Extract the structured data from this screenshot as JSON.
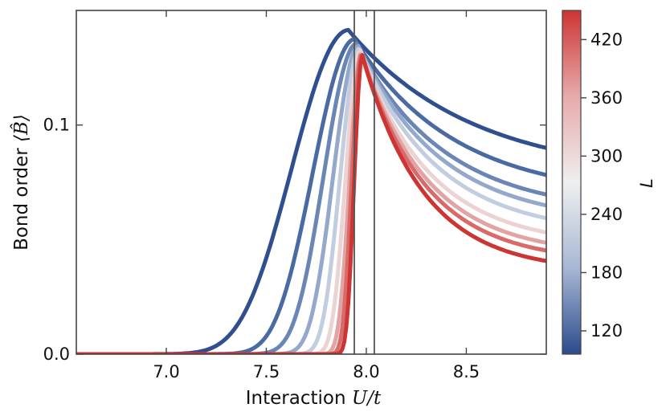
{
  "chart_data": {
    "type": "line",
    "title": "",
    "xlabel_text": "Interaction",
    "xlabel_math": "U/t",
    "ylabel_text": "Bond order",
    "ylabel_math": "⟨B̂⟩",
    "xlim": [
      6.55,
      8.9
    ],
    "ylim": [
      0.0,
      0.15
    ],
    "x_ticks": [
      {
        "value": 7.0,
        "label": "7.0"
      },
      {
        "value": 7.5,
        "label": "7.5"
      },
      {
        "value": 8.0,
        "label": "8.0"
      },
      {
        "value": 8.5,
        "label": "8.5"
      }
    ],
    "y_ticks": [
      {
        "value": 0.0,
        "label": "0.0"
      },
      {
        "value": 0.1,
        "label": "0.1"
      }
    ],
    "vertical_lines": [
      7.94,
      8.04
    ],
    "colorbar": {
      "label": "L",
      "range": [
        96,
        450
      ],
      "ticks": [
        {
          "value": 120,
          "label": "120"
        },
        {
          "value": 180,
          "label": "180"
        },
        {
          "value": 240,
          "label": "240"
        },
        {
          "value": 300,
          "label": "300"
        },
        {
          "value": 360,
          "label": "360"
        },
        {
          "value": 420,
          "label": "420"
        }
      ],
      "colors": [
        "#2b4b8d",
        "#a7b7d4",
        "#efefef",
        "#e8aaaa",
        "#cc3534"
      ]
    },
    "series": [
      {
        "L": 100,
        "color": "#2f4f8e",
        "peak_x": 7.91,
        "peak_y": 0.1415,
        "width_left": 0.38,
        "width_right": 1.05,
        "tail": 0.077
      },
      {
        "L": 150,
        "color": "#4a6aa2",
        "peak_x": 7.94,
        "peak_y": 0.1375,
        "width_left": 0.28,
        "width_right": 0.85,
        "tail": 0.068
      },
      {
        "L": 180,
        "color": "#6a86b5",
        "peak_x": 7.95,
        "peak_y": 0.1355,
        "width_left": 0.22,
        "width_right": 0.75,
        "tail": 0.061
      },
      {
        "L": 210,
        "color": "#93a8cb",
        "peak_x": 7.96,
        "peak_y": 0.1345,
        "width_left": 0.17,
        "width_right": 0.7,
        "tail": 0.057
      },
      {
        "L": 240,
        "color": "#c2cddf",
        "peak_x": 7.965,
        "peak_y": 0.1335,
        "width_left": 0.13,
        "width_right": 0.66,
        "tail": 0.052
      },
      {
        "L": 300,
        "color": "#ebd3d3",
        "peak_x": 7.97,
        "peak_y": 0.1325,
        "width_left": 0.1,
        "width_right": 0.6,
        "tail": 0.047
      },
      {
        "L": 360,
        "color": "#e4a3a3",
        "peak_x": 7.975,
        "peak_y": 0.1315,
        "width_left": 0.08,
        "width_right": 0.57,
        "tail": 0.043
      },
      {
        "L": 400,
        "color": "#d86a69",
        "peak_x": 7.975,
        "peak_y": 0.131,
        "width_left": 0.065,
        "width_right": 0.55,
        "tail": 0.04
      },
      {
        "L": 450,
        "color": "#cc3534",
        "peak_x": 7.98,
        "peak_y": 0.1305,
        "width_left": 0.055,
        "width_right": 0.52,
        "tail": 0.036
      }
    ]
  }
}
